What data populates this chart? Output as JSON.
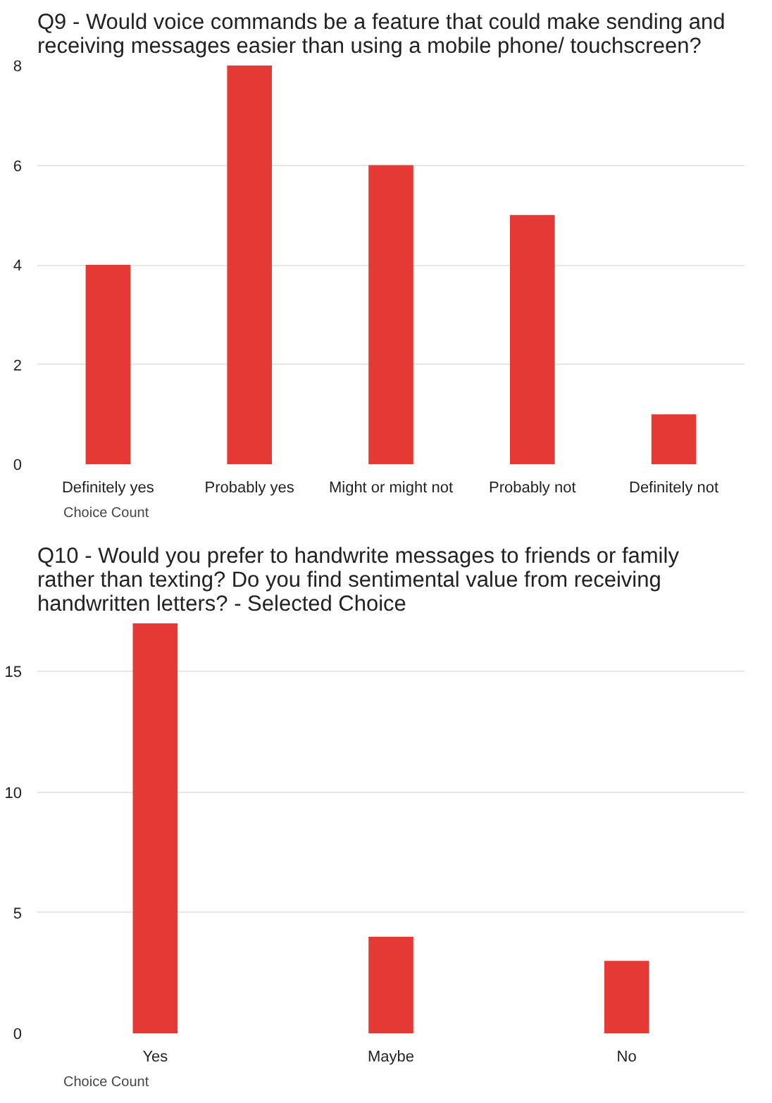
{
  "chart_data": [
    {
      "type": "bar",
      "title": "Q9 - Would voice commands be a feature that could make sending and receiving messages easier than using a mobile phone/ touchscreen?",
      "categories": [
        "Definitely yes",
        "Probably yes",
        "Might or might not",
        "Probably not",
        "Definitely not"
      ],
      "series": [
        {
          "name": "Choice Count",
          "color": "#e53935",
          "values": [
            4,
            8,
            6,
            5,
            1
          ]
        }
      ],
      "ylim": [
        0,
        8
      ],
      "yticks": [
        0,
        2,
        4,
        6,
        8
      ],
      "grid": "y",
      "legend": "bottom"
    },
    {
      "type": "bar",
      "title": "Q10 - Would you prefer to handwrite messages to friends or family rather than texting? Do you find sentimental value from receiving handwritten letters? - Selected Choice",
      "categories": [
        "Yes",
        "Maybe",
        "No"
      ],
      "series": [
        {
          "name": "Choice Count",
          "color": "#e53935",
          "values": [
            17,
            4,
            3
          ]
        }
      ],
      "ylim": [
        0,
        17
      ],
      "yticks": [
        0,
        5,
        10,
        15
      ],
      "grid": "y",
      "legend": "bottom"
    }
  ]
}
